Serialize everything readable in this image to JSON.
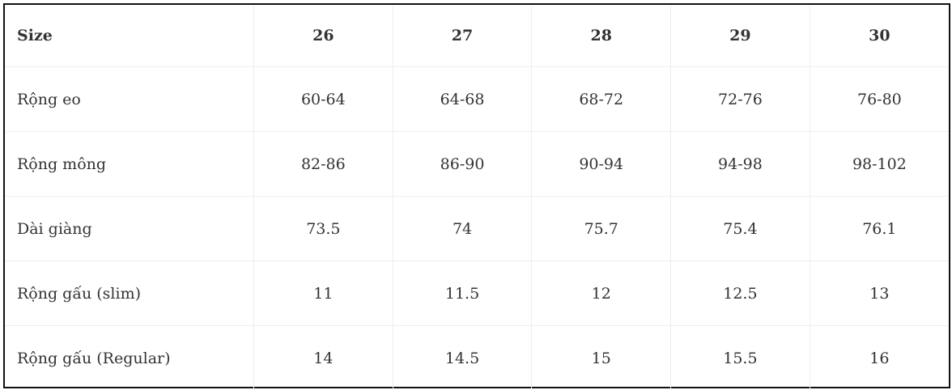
{
  "table": {
    "header": [
      "Size",
      "26",
      "27",
      "28",
      "29",
      "30"
    ],
    "rows": [
      [
        "Rộng eo",
        "60-64",
        "64-68",
        "68-72",
        "72-76",
        "76-80"
      ],
      [
        "Rộng mông",
        "82-86",
        "86-90",
        "90-94",
        "94-98",
        "98-102"
      ],
      [
        "Dài giàng",
        "73.5",
        "74",
        "75.7",
        "75.4",
        "76.1"
      ],
      [
        "Rộng gấu (slim)",
        "11",
        "11.5",
        "12",
        "12.5",
        "13"
      ],
      [
        "Rộng gấu (Regular)",
        "14",
        "14.5",
        "15",
        "15.5",
        "16"
      ]
    ]
  }
}
